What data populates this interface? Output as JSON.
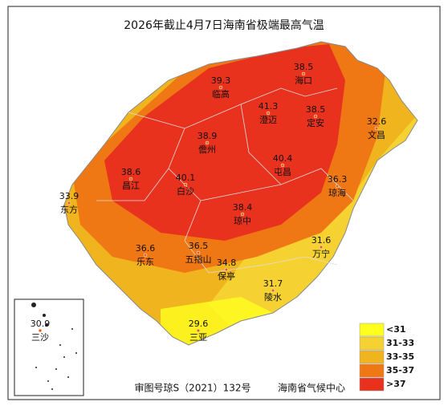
{
  "title": "2026年截止4月7日海南省极端最高气温",
  "stations": [
    {
      "name": "海口",
      "value": 38.5
    },
    {
      "name": "临高",
      "value": 39.3
    },
    {
      "name": "澄迈",
      "value": 41.3
    },
    {
      "name": "定安",
      "value": 38.5
    },
    {
      "name": "文昌",
      "value": 32.6
    },
    {
      "name": "儋州",
      "value": 38.9
    },
    {
      "name": "屯昌",
      "value": 40.4
    },
    {
      "name": "昌江",
      "value": 38.6
    },
    {
      "name": "白沙",
      "value": 40.1
    },
    {
      "name": "琼海",
      "value": 36.3
    },
    {
      "name": "东方",
      "value": 33.9
    },
    {
      "name": "琼中",
      "value": 38.4
    },
    {
      "name": "万宁",
      "value": 31.6
    },
    {
      "name": "乐东",
      "value": 36.6
    },
    {
      "name": "五指山",
      "value": 36.5
    },
    {
      "name": "保亭",
      "value": 34.8
    },
    {
      "name": "陵水",
      "value": 31.7
    },
    {
      "name": "三亚",
      "value": 29.6
    },
    {
      "name": "三沙",
      "value": 30.9
    }
  ],
  "legend": [
    {
      "label": "<31",
      "color": "#ffff1e"
    },
    {
      "label": "31-33",
      "color": "#f5d232"
    },
    {
      "label": "33-35",
      "color": "#f0b41e"
    },
    {
      "label": "35-37",
      "color": "#f07814"
    },
    {
      "label": ">37",
      "color": "#e8321e"
    }
  ],
  "footer": {
    "approval": "审图号琼S（2021）132号",
    "agency": "海南省气候中心"
  }
}
